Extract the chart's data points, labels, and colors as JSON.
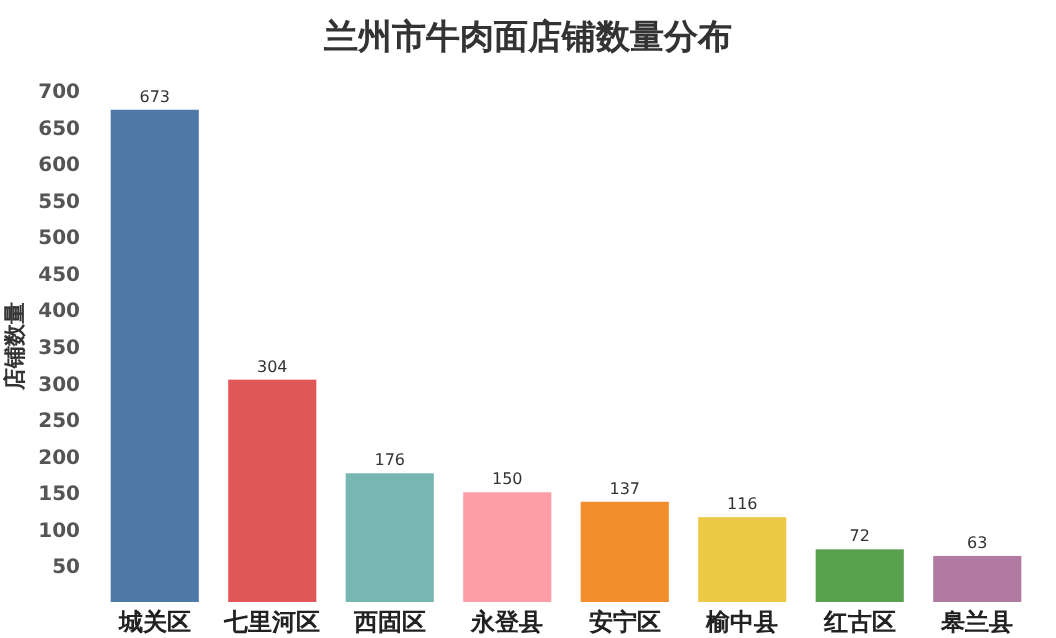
{
  "chart_data": {
    "type": "bar",
    "title": "兰州市牛肉面店铺数量分布",
    "ylabel": "店铺数量",
    "categories": [
      "城关区",
      "七里河区",
      "西固区",
      "永登县",
      "安宁区",
      "榆中县",
      "红古区",
      "皋兰县"
    ],
    "values": [
      673,
      304,
      176,
      150,
      137,
      116,
      72,
      63
    ],
    "colors": [
      "#4e79a7",
      "#e15759",
      "#76b7b2",
      "#ff9da7",
      "#f28e2b",
      "#edc948",
      "#59a14f",
      "#b07aa1"
    ],
    "ylim": [
      0,
      700
    ],
    "yticks": [
      50,
      100,
      150,
      200,
      250,
      300,
      350,
      400,
      450,
      500,
      550,
      600,
      650,
      700
    ],
    "data_labels": true,
    "grid": false
  }
}
